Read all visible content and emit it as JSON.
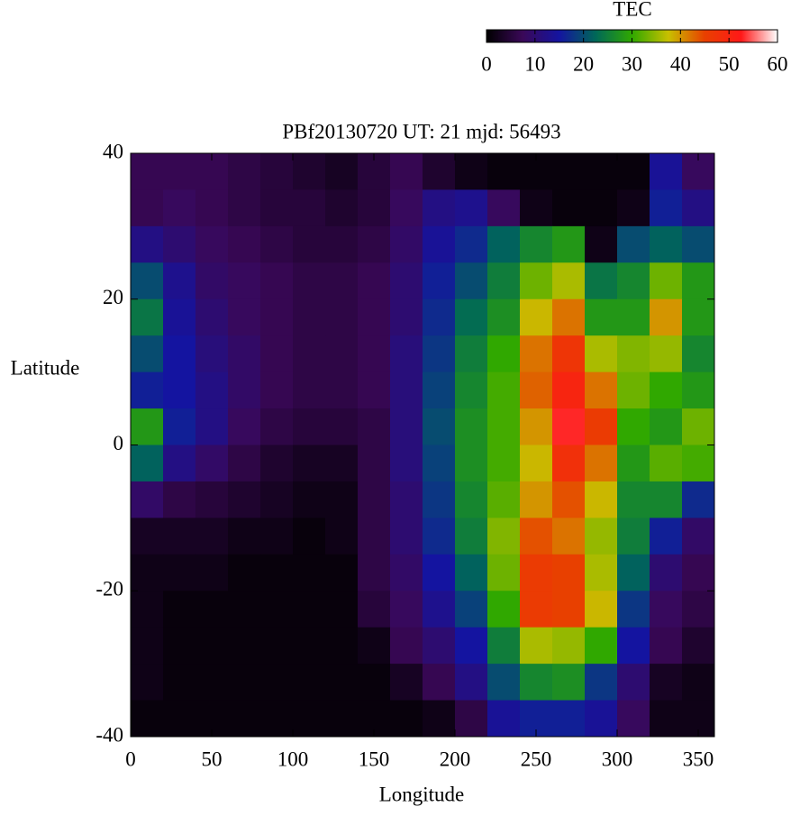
{
  "chart_data": {
    "type": "heatmap",
    "title": "PBf20130720  UT: 21  mjd: 56493",
    "x_label": "Longitude",
    "y_label": "Latitude",
    "x": [
      10,
      30,
      50,
      70,
      90,
      110,
      130,
      150,
      170,
      190,
      210,
      230,
      250,
      270,
      290,
      310,
      330,
      350
    ],
    "y": [
      37.5,
      32.5,
      27.5,
      22.5,
      17.5,
      12.5,
      7.5,
      2.5,
      -2.5,
      -7.5,
      -12.5,
      -17.5,
      -22.5,
      -27.5,
      -32.5,
      -37.5
    ],
    "values": [
      [
        7,
        7,
        7,
        6,
        5,
        4,
        3,
        5,
        7,
        4,
        2,
        1,
        1,
        1,
        1,
        1,
        14,
        8
      ],
      [
        7,
        8,
        7,
        6,
        5,
        5,
        4,
        5,
        8,
        12,
        13,
        8,
        2,
        1,
        1,
        2,
        16,
        12
      ],
      [
        12,
        10,
        8,
        7,
        6,
        5,
        5,
        6,
        9,
        14,
        17,
        22,
        26,
        28,
        2,
        20,
        22,
        20
      ],
      [
        20,
        13,
        9,
        8,
        7,
        6,
        6,
        7,
        10,
        16,
        20,
        25,
        33,
        36,
        24,
        26,
        33,
        28
      ],
      [
        24,
        14,
        10,
        8,
        7,
        6,
        6,
        7,
        10,
        17,
        23,
        27,
        38,
        42,
        28,
        28,
        40,
        28
      ],
      [
        20,
        15,
        11,
        9,
        7,
        6,
        6,
        7,
        11,
        18,
        25,
        30,
        42,
        47,
        36,
        34,
        35,
        26
      ],
      [
        16,
        15,
        12,
        9,
        7,
        6,
        6,
        7,
        11,
        19,
        26,
        31,
        43,
        50,
        42,
        33,
        30,
        28
      ],
      [
        28,
        16,
        12,
        8,
        6,
        5,
        5,
        6,
        11,
        20,
        27,
        31,
        40,
        53,
        46,
        30,
        28,
        33
      ],
      [
        22,
        12,
        9,
        6,
        4,
        3,
        3,
        6,
        11,
        19,
        27,
        31,
        38,
        48,
        42,
        28,
        32,
        31
      ],
      [
        9,
        6,
        5,
        4,
        3,
        2,
        2,
        6,
        10,
        18,
        26,
        32,
        40,
        44,
        38,
        26,
        26,
        17
      ],
      [
        3,
        3,
        3,
        2,
        2,
        1,
        2,
        6,
        10,
        17,
        25,
        34,
        44,
        42,
        35,
        25,
        16,
        9
      ],
      [
        2,
        2,
        2,
        1,
        1,
        1,
        1,
        6,
        9,
        15,
        22,
        33,
        46,
        45,
        36,
        22,
        10,
        7
      ],
      [
        2,
        1,
        1,
        1,
        1,
        1,
        1,
        5,
        8,
        13,
        19,
        30,
        46,
        45,
        38,
        18,
        8,
        6
      ],
      [
        2,
        1,
        1,
        1,
        1,
        1,
        1,
        2,
        7,
        10,
        15,
        25,
        36,
        35,
        30,
        15,
        7,
        4
      ],
      [
        2,
        1,
        1,
        1,
        1,
        1,
        1,
        1,
        3,
        7,
        12,
        20,
        26,
        27,
        18,
        10,
        3,
        2
      ],
      [
        1,
        1,
        1,
        1,
        1,
        1,
        1,
        1,
        1,
        2,
        6,
        14,
        16,
        16,
        14,
        8,
        2,
        2
      ]
    ],
    "xlim": [
      0,
      360
    ],
    "xticks": [
      0,
      50,
      100,
      150,
      200,
      250,
      300,
      350
    ],
    "ylim": [
      -40,
      40
    ],
    "yticks": [
      -40,
      -20,
      0,
      20,
      40
    ],
    "colorbar": {
      "label": "TEC",
      "lim": [
        0,
        60
      ],
      "ticks": [
        0,
        10,
        20,
        30,
        40,
        50,
        60
      ]
    },
    "colormap": [
      "#000000",
      "#3a0858",
      "#1414a0",
      "#006858",
      "#30a800",
      "#c8c000",
      "#e84000",
      "#ff1818",
      "#ffffff"
    ]
  }
}
